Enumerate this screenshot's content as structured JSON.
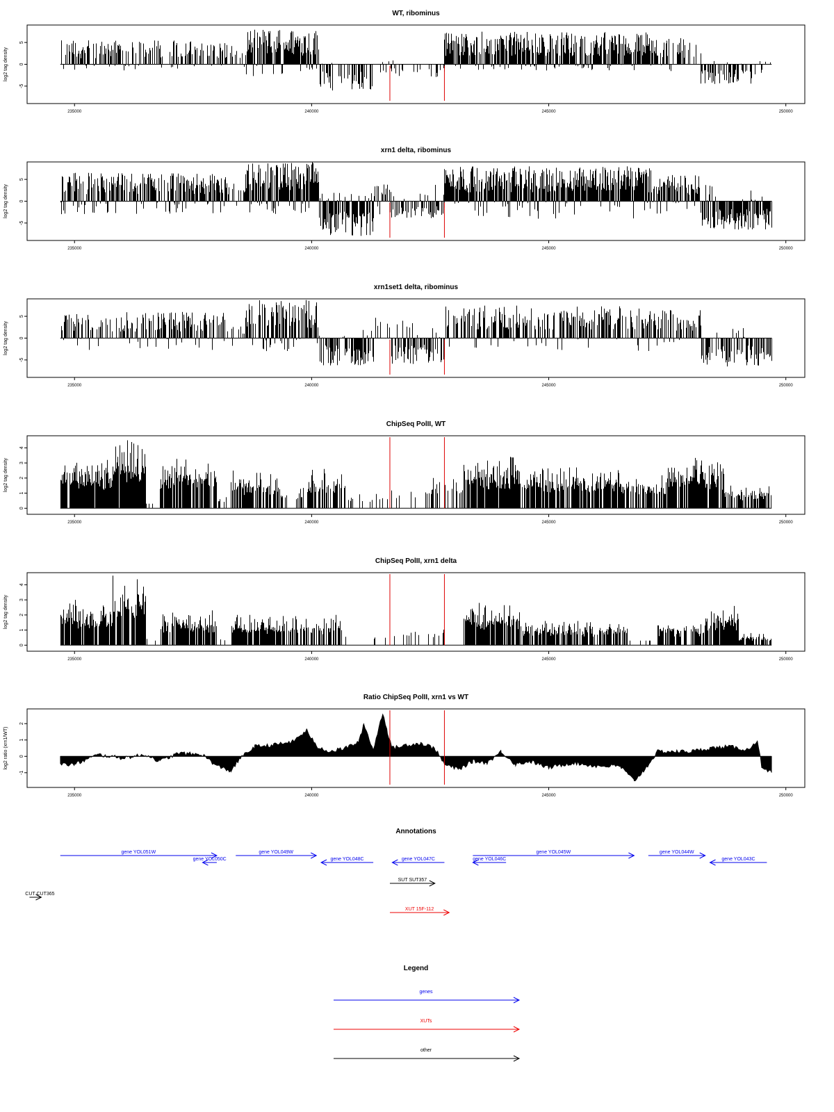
{
  "colors": {
    "axis": "#000000",
    "bars": "#000000",
    "marker": "#dd0000",
    "gene": "#0000ee",
    "xut": "#ee0000",
    "other": "#000000"
  },
  "x_axis": {
    "range": [
      234000,
      250400
    ],
    "ticks": [
      235000,
      240000,
      245000,
      250000
    ],
    "tick_labels": [
      "235000",
      "240000",
      "245000",
      "250000"
    ]
  },
  "markers": {
    "positions": [
      241650,
      242800
    ]
  },
  "chart_data": [
    {
      "type": "bar",
      "title": "WT, ribominus",
      "ylabel": "log2 tag density",
      "ylim": [
        -9,
        9
      ],
      "yticks": [
        -5,
        0,
        5
      ],
      "ytick_labels": [
        "-5",
        "0",
        "5"
      ],
      "mode": "signed",
      "series": [
        {
          "values": [
            {
              "x": [
                234700,
                238200
              ],
              "min": -1.5,
              "max": 5.5,
              "density": 0.55
            },
            {
              "x": [
                238200,
                238600
              ],
              "min": -2,
              "max": 4.5,
              "density": 0.35
            },
            {
              "x": [
                238600,
                240150
              ],
              "min": -3,
              "max": 8,
              "density": 0.9
            },
            {
              "x": [
                240150,
                241300
              ],
              "min": -6,
              "max": 0.5,
              "density": 0.55
            },
            {
              "x": [
                241300,
                241650
              ],
              "min": -2,
              "max": 1.5,
              "density": 0.2
            },
            {
              "x": [
                241650,
                242800
              ],
              "min": -3,
              "max": 2,
              "density": 0.25
            },
            {
              "x": [
                242800,
                247200
              ],
              "min": -1.5,
              "max": 7.5,
              "density": 0.9
            },
            {
              "x": [
                247200,
                248200
              ],
              "min": -2,
              "max": 6,
              "density": 0.5
            },
            {
              "x": [
                248200,
                249500
              ],
              "min": -4.5,
              "max": 1,
              "density": 0.6
            },
            {
              "x": [
                249500,
                249700
              ],
              "min": 0,
              "max": 1,
              "density": 0.2
            }
          ]
        }
      ]
    },
    {
      "type": "bar",
      "title": "xrn1 delta, ribominus",
      "ylabel": "log2 tag density",
      "ylim": [
        -9,
        9
      ],
      "yticks": [
        -5,
        0,
        5
      ],
      "ytick_labels": [
        "-5",
        "0",
        "5"
      ],
      "mode": "signed",
      "series": [
        {
          "values": [
            {
              "x": [
                234700,
                238200
              ],
              "min": -3,
              "max": 6.5,
              "density": 0.8
            },
            {
              "x": [
                238200,
                238600
              ],
              "min": -3,
              "max": 5,
              "density": 0.5
            },
            {
              "x": [
                238600,
                240150
              ],
              "min": -3,
              "max": 9,
              "density": 0.95
            },
            {
              "x": [
                240150,
                241300
              ],
              "min": -8,
              "max": 2,
              "density": 0.95
            },
            {
              "x": [
                241300,
                241650
              ],
              "min": -3,
              "max": 4,
              "density": 0.6
            },
            {
              "x": [
                241650,
                242800
              ],
              "min": -4,
              "max": 4,
              "density": 0.6
            },
            {
              "x": [
                242800,
                247200
              ],
              "min": -4,
              "max": 8,
              "density": 0.95
            },
            {
              "x": [
                247200,
                248200
              ],
              "min": -3,
              "max": 6,
              "density": 0.8
            },
            {
              "x": [
                248200,
                249700
              ],
              "min": -6.5,
              "max": 4,
              "density": 0.85
            }
          ]
        }
      ]
    },
    {
      "type": "bar",
      "title": "xrn1set1 delta, ribominus",
      "ylabel": "log2 tag density",
      "ylim": [
        -9,
        9
      ],
      "yticks": [
        -5,
        0,
        5
      ],
      "ytick_labels": [
        "-5",
        "0",
        "5"
      ],
      "mode": "signed",
      "series": [
        {
          "values": [
            {
              "x": [
                234700,
                238200
              ],
              "min": -3,
              "max": 6,
              "density": 0.55
            },
            {
              "x": [
                238200,
                238600
              ],
              "min": -2,
              "max": 4,
              "density": 0.35
            },
            {
              "x": [
                238600,
                240150
              ],
              "min": -3,
              "max": 9,
              "density": 0.85
            },
            {
              "x": [
                240150,
                241300
              ],
              "min": -6.5,
              "max": 2,
              "density": 0.7
            },
            {
              "x": [
                241300,
                241650
              ],
              "min": -3,
              "max": 5,
              "density": 0.5
            },
            {
              "x": [
                241650,
                242800
              ],
              "min": -6,
              "max": 5,
              "density": 0.6
            },
            {
              "x": [
                242800,
                247200
              ],
              "min": -3,
              "max": 7.5,
              "density": 0.6
            },
            {
              "x": [
                247200,
                248200
              ],
              "min": -2,
              "max": 6.5,
              "density": 0.55
            },
            {
              "x": [
                248200,
                249700
              ],
              "min": -6.5,
              "max": 2.5,
              "density": 0.6
            }
          ]
        }
      ]
    },
    {
      "type": "bar",
      "title": "ChipSeq PolII, WT",
      "ylabel": "log2 tag density",
      "ylim": [
        -0.4,
        4.8
      ],
      "yticks": [
        0,
        1,
        2,
        3,
        4
      ],
      "ytick_labels": [
        "0",
        "1",
        "2",
        "3",
        "4"
      ],
      "mode": "positive",
      "series": [
        {
          "values": [
            {
              "x": [
                234700,
                235800
              ],
              "min": 0,
              "max": 3.2,
              "density": 0.9
            },
            {
              "x": [
                235800,
                236500
              ],
              "min": 0,
              "max": 4.5,
              "density": 0.95
            },
            {
              "x": [
                236500,
                236800
              ],
              "min": 0,
              "max": 0.5,
              "density": 0.1
            },
            {
              "x": [
                236800,
                238000
              ],
              "min": 0,
              "max": 3.3,
              "density": 0.8
            },
            {
              "x": [
                238000,
                238300
              ],
              "min": 0,
              "max": 0.8,
              "density": 0.1
            },
            {
              "x": [
                238300,
                239300
              ],
              "min": 0,
              "max": 2.5,
              "density": 0.75
            },
            {
              "x": [
                239300,
                239900
              ],
              "min": 0,
              "max": 1.5,
              "density": 0.25
            },
            {
              "x": [
                239900,
                240700
              ],
              "min": 0,
              "max": 2.6,
              "density": 0.65
            },
            {
              "x": [
                240700,
                241350
              ],
              "min": 0,
              "max": 1,
              "density": 0.18
            },
            {
              "x": [
                241350,
                241650
              ],
              "min": 0,
              "max": 1,
              "density": 0.06
            },
            {
              "x": [
                241650,
                242400
              ],
              "min": 0,
              "max": 1.5,
              "density": 0.1
            },
            {
              "x": [
                242400,
                243200
              ],
              "min": 0,
              "max": 2,
              "density": 0.3
            },
            {
              "x": [
                243200,
                244400
              ],
              "min": 0,
              "max": 3.4,
              "density": 0.9
            },
            {
              "x": [
                244400,
                246500
              ],
              "min": 0,
              "max": 2.7,
              "density": 0.75
            },
            {
              "x": [
                246500,
                247500
              ],
              "min": 0,
              "max": 2.2,
              "density": 0.6
            },
            {
              "x": [
                247500,
                248700
              ],
              "min": 0,
              "max": 3.5,
              "density": 0.8
            },
            {
              "x": [
                248700,
                249700
              ],
              "min": 0,
              "max": 1.5,
              "density": 0.7
            }
          ]
        }
      ]
    },
    {
      "type": "bar",
      "title": "ChipSeq PolII, xrn1 delta",
      "ylabel": "log2 tag density",
      "ylim": [
        -0.4,
        4.8
      ],
      "yticks": [
        0,
        1,
        2,
        3,
        4
      ],
      "ytick_labels": [
        "0",
        "1",
        "2",
        "3",
        "4"
      ],
      "mode": "positive",
      "series": [
        {
          "values": [
            {
              "x": [
                234700,
                235800
              ],
              "min": 0,
              "max": 3,
              "density": 0.9
            },
            {
              "x": [
                235800,
                236500
              ],
              "min": 0,
              "max": 4.6,
              "density": 0.95
            },
            {
              "x": [
                236500,
                236800
              ],
              "min": 0,
              "max": 0.5,
              "density": 0.1
            },
            {
              "x": [
                236800,
                238000
              ],
              "min": 0,
              "max": 2.3,
              "density": 0.8
            },
            {
              "x": [
                238000,
                238300
              ],
              "min": 0,
              "max": 0.4,
              "density": 0.05
            },
            {
              "x": [
                238300,
                239700
              ],
              "min": 0,
              "max": 2,
              "density": 0.8
            },
            {
              "x": [
                239700,
                240600
              ],
              "min": 0,
              "max": 2,
              "density": 0.6
            },
            {
              "x": [
                240600,
                241650
              ],
              "min": 0,
              "max": 1,
              "density": 0.12
            },
            {
              "x": [
                241650,
                243200
              ],
              "min": 0,
              "max": 1.2,
              "density": 0.12
            },
            {
              "x": [
                243200,
                244400
              ],
              "min": 0,
              "max": 2.8,
              "density": 0.9
            },
            {
              "x": [
                244400,
                246700
              ],
              "min": 0,
              "max": 1.6,
              "density": 0.7
            },
            {
              "x": [
                246700,
                247300
              ],
              "min": 0,
              "max": 0.3,
              "density": 0.05
            },
            {
              "x": [
                247300,
                248300
              ],
              "min": 0,
              "max": 1.6,
              "density": 0.7
            },
            {
              "x": [
                248300,
                249000
              ],
              "min": 0,
              "max": 2.6,
              "density": 0.9
            },
            {
              "x": [
                249000,
                249700
              ],
              "min": 0,
              "max": 0.8,
              "density": 0.7
            }
          ]
        }
      ]
    },
    {
      "type": "area",
      "title": "Ratio ChipSeq PolII, xrn1 vs WT",
      "ylabel": "log2 ratio (xrn1/WT)",
      "ylim": [
        -1.9,
        2.9
      ],
      "yticks": [
        -1,
        0,
        1,
        2
      ],
      "ytick_labels": [
        "-1",
        "0",
        "1",
        "2"
      ],
      "series": [
        {
          "x": [
            234700,
            235000,
            235500,
            236000,
            236500,
            236800,
            237200,
            237700,
            238000,
            238300,
            238500,
            238800,
            239200,
            239600,
            239900,
            240100,
            240400,
            240700,
            241000,
            241100,
            241300,
            241500,
            241600,
            241700,
            242000,
            242300,
            242600,
            242800,
            243100,
            243400,
            243700,
            244000,
            244300,
            244600,
            245000,
            245500,
            246000,
            246500,
            246800,
            247000,
            247300,
            247700,
            248000,
            248400,
            248800,
            249200,
            249400,
            249500,
            249700
          ],
          "values": [
            -0.5,
            -0.5,
            0.1,
            -0.1,
            0.1,
            -0.3,
            0.2,
            0.1,
            -0.6,
            -0.9,
            -0.1,
            0.6,
            0.7,
            0.9,
            1.6,
            0.6,
            0.3,
            0.5,
            0.9,
            2.0,
            0.4,
            2.7,
            1.5,
            0.5,
            0.7,
            0.8,
            0.5,
            -0.5,
            -0.8,
            -0.3,
            -0.4,
            0.3,
            -0.5,
            -0.3,
            -0.7,
            -0.4,
            -0.6,
            -0.6,
            -1.5,
            -0.9,
            0.3,
            0.3,
            0.3,
            0.5,
            0.6,
            0.4,
            1.0,
            -0.8,
            -1.0
          ]
        }
      ]
    }
  ],
  "annotations": {
    "title": "Annotations",
    "items": [
      {
        "label": "gene YOL051W",
        "kind": "gene",
        "start": 234700,
        "end": 238000,
        "dir": "fwd",
        "row": 0
      },
      {
        "label": "gene YOL050C",
        "kind": "gene",
        "start": 237700,
        "end": 238000,
        "dir": "rev",
        "row": 1
      },
      {
        "label": "gene YOL049W",
        "kind": "gene",
        "start": 238400,
        "end": 240100,
        "dir": "fwd",
        "row": 0
      },
      {
        "label": "gene YOL048C",
        "kind": "gene",
        "start": 240200,
        "end": 241300,
        "dir": "rev",
        "row": 1
      },
      {
        "label": "gene YOL047C",
        "kind": "gene",
        "start": 241700,
        "end": 242800,
        "dir": "rev",
        "row": 1
      },
      {
        "label": "gene YOL046C",
        "kind": "gene",
        "start": 243400,
        "end": 244100,
        "dir": "rev",
        "row": 1
      },
      {
        "label": "gene YOL045W",
        "kind": "gene",
        "start": 243400,
        "end": 246800,
        "dir": "fwd",
        "row": 0
      },
      {
        "label": "gene YOL044W",
        "kind": "gene",
        "start": 247100,
        "end": 248300,
        "dir": "fwd",
        "row": 0
      },
      {
        "label": "gene YOL043C",
        "kind": "gene",
        "start": 248400,
        "end": 249600,
        "dir": "rev",
        "row": 1
      },
      {
        "label": "SUT SUT357",
        "kind": "other",
        "start": 241650,
        "end": 242600,
        "dir": "fwd",
        "row": 2
      },
      {
        "label": "CUT CUT365",
        "kind": "other",
        "start": 234050,
        "end": 234300,
        "dir": "fwd",
        "row": 3
      },
      {
        "label": "XUT 15F-112",
        "kind": "xut",
        "start": 241650,
        "end": 242900,
        "dir": "fwd",
        "row": 4
      }
    ]
  },
  "legend": {
    "title": "Legend",
    "items": [
      {
        "label": "genes",
        "kind": "gene"
      },
      {
        "label": "XUTs",
        "kind": "xut"
      },
      {
        "label": "other",
        "kind": "other"
      }
    ]
  }
}
